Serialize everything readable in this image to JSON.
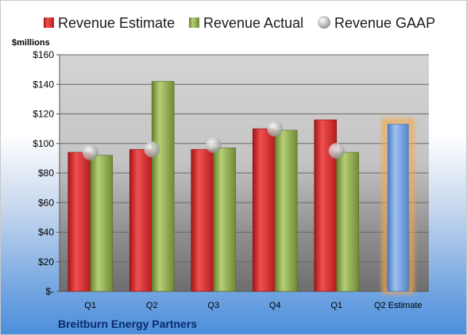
{
  "chart_data": {
    "type": "bar",
    "y_unit": "$millions",
    "company": "Breitburn Energy Partners",
    "categories": [
      "Q1",
      "Q2",
      "Q3",
      "Q4",
      "Q1",
      "Q2 Estimate"
    ],
    "ylim": [
      0,
      160
    ],
    "yticks": [
      0,
      20,
      40,
      60,
      80,
      100,
      120,
      140,
      160
    ],
    "ytick_labels": [
      "$-",
      "$20",
      "$40",
      "$60",
      "$80",
      "$100",
      "$120",
      "$140",
      "$160"
    ],
    "grid": true,
    "legend_position": "top",
    "series": [
      {
        "name": "Revenue Estimate",
        "kind": "bar",
        "color": "#d9282a",
        "values": [
          94,
          96,
          96,
          110,
          116,
          null
        ]
      },
      {
        "name": "Revenue Actual",
        "kind": "bar",
        "color": "#8fac4a",
        "values": [
          92,
          142,
          97,
          109,
          94,
          null
        ]
      },
      {
        "name": "Revenue GAAP",
        "kind": "marker",
        "color": "#b8b8b8",
        "values": [
          94,
          96,
          99,
          110,
          95,
          null
        ]
      },
      {
        "name": "Q2 Estimate",
        "kind": "highlight-bar",
        "color": "#6f9ddc",
        "glow": "#f5a94a",
        "values": [
          null,
          null,
          null,
          null,
          null,
          113
        ]
      }
    ]
  }
}
